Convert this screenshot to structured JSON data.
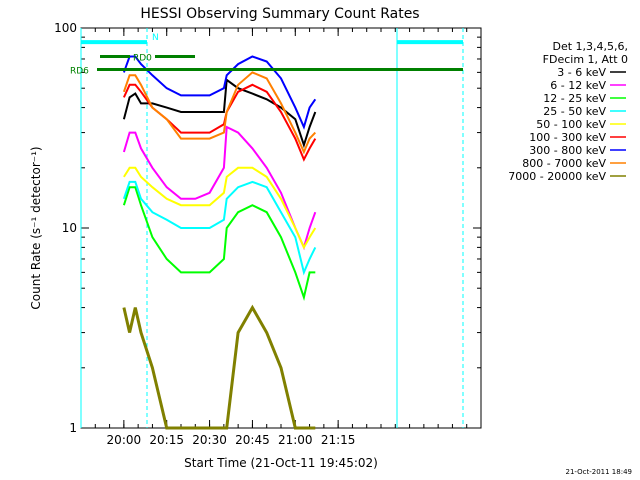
{
  "chart_data": {
    "type": "line",
    "title": "HESSI Observing Summary Count Rates",
    "xlabel": "Start Time (21-Oct-11 19:45:02)",
    "ylabel": "Count Rate (s⁻¹ detector⁻¹)",
    "y_scale": "log",
    "ylim": [
      1,
      100
    ],
    "xlim": [
      "19:45",
      "22:05"
    ],
    "x_ticks": [
      "20:00",
      "20:15",
      "20:30",
      "20:45",
      "21:00",
      "21:15"
    ],
    "y_ticks": [
      "1",
      "10",
      "100"
    ],
    "legend_position": "right",
    "legend_header": [
      "Det 1,3,4,5,6,",
      "FDecim 1, Att 0"
    ],
    "x": [
      "19:48",
      "19:55",
      "19:59",
      "20:00",
      "20:02",
      "20:04",
      "20:06",
      "20:10",
      "20:15",
      "20:20",
      "20:25",
      "20:30",
      "20:35",
      "20:36",
      "20:40",
      "20:45",
      "20:50",
      "20:55",
      "21:00",
      "21:03",
      "21:05",
      "21:07"
    ],
    "series": [
      {
        "name": "3 - 6 keV",
        "color": "#000000",
        "values": [
          null,
          null,
          null,
          35,
          45,
          47,
          42,
          42,
          40,
          38,
          38,
          38,
          38,
          55,
          50,
          47,
          44,
          40,
          35,
          26,
          32,
          38
        ]
      },
      {
        "name": "6 - 12 keV",
        "color": "#ff00ff",
        "values": [
          null,
          null,
          null,
          24,
          30,
          30,
          25,
          20,
          16,
          14,
          14,
          15,
          20,
          32,
          30,
          25,
          20,
          15,
          10,
          8,
          10,
          12
        ]
      },
      {
        "name": "12 - 25 keV",
        "color": "#00ff00",
        "values": [
          null,
          null,
          null,
          13,
          16,
          16,
          13,
          9,
          7,
          6,
          6,
          6,
          7,
          10,
          12,
          13,
          12,
          9,
          6,
          4.5,
          6,
          6
        ]
      },
      {
        "name": "25 - 50 keV",
        "color": "#00ffff",
        "values": [
          null,
          null,
          null,
          14,
          17,
          17,
          14,
          12,
          11,
          10,
          10,
          10,
          11,
          14,
          16,
          17,
          16,
          12,
          9,
          6,
          7,
          8
        ]
      },
      {
        "name": "50 - 100 keV",
        "color": "#ffff00",
        "values": [
          null,
          null,
          null,
          18,
          20,
          20,
          18,
          16,
          14,
          13,
          13,
          13,
          15,
          18,
          20,
          20,
          18,
          14,
          10,
          8,
          9,
          10
        ]
      },
      {
        "name": "100 - 300 keV",
        "color": "#ff0000",
        "values": [
          null,
          null,
          null,
          45,
          52,
          52,
          48,
          40,
          35,
          30,
          30,
          30,
          33,
          38,
          48,
          52,
          48,
          38,
          28,
          22,
          25,
          28
        ]
      },
      {
        "name": "300 - 800 keV",
        "color": "#0000ff",
        "values": [
          null,
          null,
          null,
          60,
          72,
          72,
          66,
          58,
          50,
          46,
          46,
          46,
          50,
          58,
          66,
          72,
          68,
          56,
          40,
          32,
          40,
          44
        ]
      },
      {
        "name": "800 - 7000 keV",
        "color": "#ff8000",
        "values": [
          null,
          null,
          null,
          48,
          58,
          58,
          52,
          40,
          35,
          28,
          28,
          28,
          30,
          38,
          52,
          60,
          56,
          42,
          30,
          24,
          28,
          30
        ]
      },
      {
        "name": "7000 - 20000 keV",
        "color": "#808000",
        "values": [
          null,
          null,
          null,
          4,
          3,
          4,
          3,
          2,
          1,
          1,
          1,
          1,
          1,
          1,
          3,
          4,
          3,
          2,
          1,
          1,
          1,
          1
        ]
      }
    ],
    "annotations": [
      {
        "label": "RD0",
        "color": "#008000",
        "y": 72
      },
      {
        "label": "RD6",
        "color": "#008000",
        "y": 62
      },
      {
        "label": "N",
        "color": "#00ffff",
        "y": 85
      }
    ],
    "timestamp": "21-Oct-2011 18:49"
  }
}
